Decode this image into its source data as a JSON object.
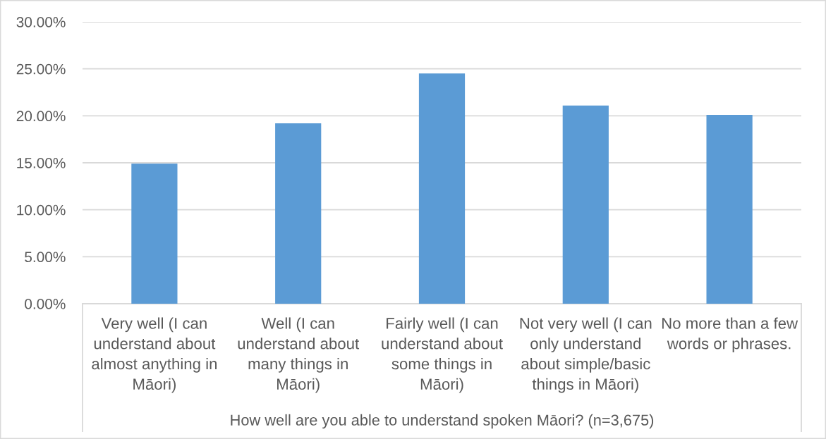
{
  "chart_data": {
    "type": "bar",
    "categories": [
      "Very well (I can\nunderstand about\nalmost anything in\nMāori)",
      "Well (I can\nunderstand about\nmany things in\nMāori)",
      "Fairly well (I can\nunderstand about\nsome things in\nMāori)",
      "Not very well (I can\nonly understand\nabout simple/basic\nthings in Māori)",
      "No more than a few\nwords or phrases."
    ],
    "values": [
      14.9,
      19.2,
      24.5,
      21.1,
      20.1
    ],
    "color": "#5b9bd5",
    "xlabel": "How well are you able to understand spoken Māori? (n=3,675)",
    "ylim": [
      0,
      30
    ],
    "yticks": [
      {
        "value": 0,
        "label": "0.00%"
      },
      {
        "value": 5,
        "label": "5.00%"
      },
      {
        "value": 10,
        "label": "10.00%"
      },
      {
        "value": 15,
        "label": "15.00%"
      },
      {
        "value": 20,
        "label": "20.00%"
      },
      {
        "value": 25,
        "label": "25.00%"
      },
      {
        "value": 30,
        "label": "30.00%"
      }
    ],
    "grid": "y"
  }
}
